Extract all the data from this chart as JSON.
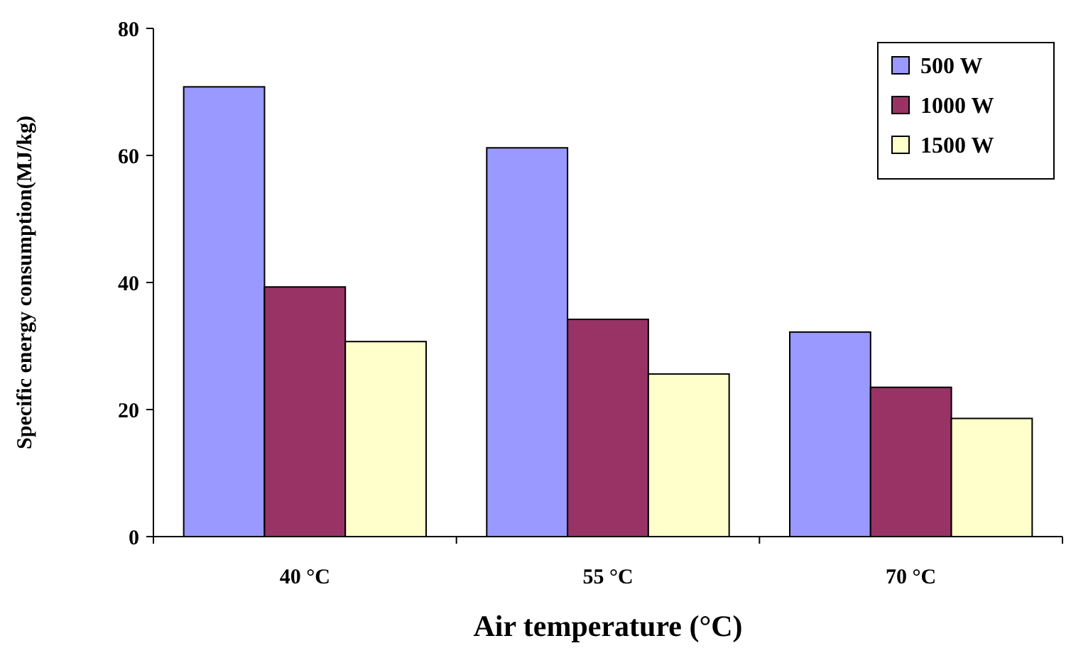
{
  "chart_data": {
    "type": "bar",
    "xlabel": "Air temperature (°C)",
    "ylabel": "Specific energy consumption(MJ/kg)",
    "categories": [
      "40 °C",
      "55 °C",
      "70 °C"
    ],
    "series": [
      {
        "name": "500 W",
        "color": "#9999ff",
        "values": [
          70.8,
          61.2,
          32.2
        ]
      },
      {
        "name": "1000 W",
        "color": "#993366",
        "values": [
          39.3,
          34.2,
          23.5
        ]
      },
      {
        "name": "1500 W",
        "color": "#ffffcc",
        "values": [
          30.7,
          25.6,
          18.6
        ]
      }
    ],
    "ylim": [
      0,
      80
    ],
    "yticks": [
      0,
      20,
      40,
      60,
      80
    ],
    "grid": false,
    "legend": "top right"
  }
}
